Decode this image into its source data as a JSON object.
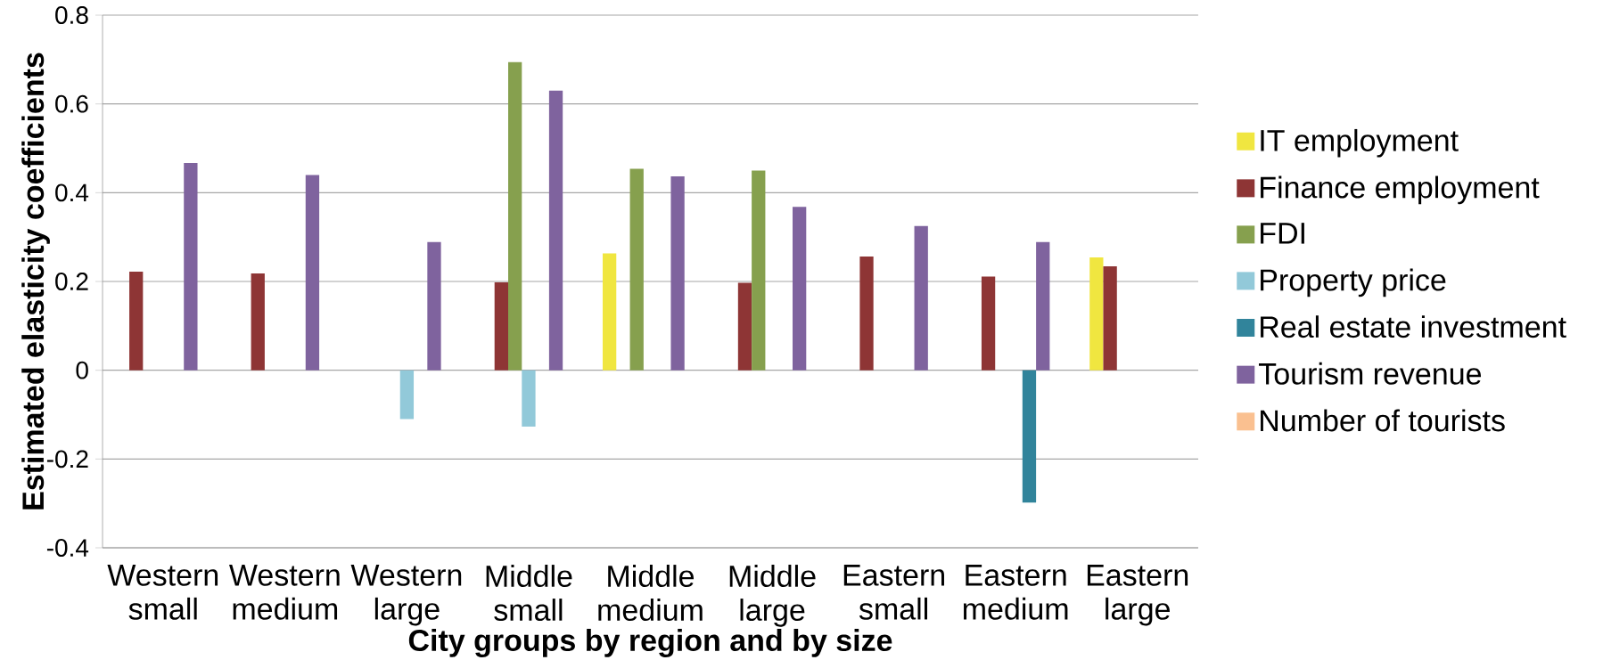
{
  "chart_data": {
    "type": "bar",
    "xlabel": "City groups by region and by size",
    "ylabel": "Estimated elasticity coefficients",
    "categories": [
      "Western small",
      "Western medium",
      "Western large",
      "Middle small",
      "Middle medium",
      "Middle large",
      "Eastern small",
      "Eastern medium",
      "Eastern large"
    ],
    "series": [
      {
        "name": "IT employment",
        "color": "#f0e640",
        "values": [
          null,
          null,
          null,
          null,
          0.263,
          null,
          null,
          null,
          0.254
        ]
      },
      {
        "name": "Finance employment",
        "color": "#8e3535",
        "values": [
          0.222,
          0.218,
          null,
          0.198,
          null,
          0.197,
          0.256,
          0.211,
          0.234
        ]
      },
      {
        "name": "FDI",
        "color": "#86a04e",
        "values": [
          null,
          null,
          null,
          0.694,
          0.454,
          0.45,
          null,
          null,
          null
        ]
      },
      {
        "name": "Property price",
        "color": "#92c9d9",
        "values": [
          null,
          null,
          -0.11,
          -0.127,
          null,
          null,
          null,
          null,
          null
        ]
      },
      {
        "name": "Real estate investment",
        "color": "#31849b",
        "values": [
          null,
          null,
          null,
          null,
          null,
          null,
          null,
          -0.298,
          null
        ]
      },
      {
        "name": "Tourism revenue",
        "color": "#7f639e",
        "values": [
          0.467,
          0.44,
          0.289,
          0.63,
          0.437,
          0.368,
          0.325,
          0.289,
          null
        ]
      },
      {
        "name": "Number of tourists",
        "color": "#fac090",
        "values": [
          null,
          null,
          null,
          null,
          null,
          null,
          null,
          null,
          null
        ]
      }
    ],
    "ylim": [
      -0.4,
      0.8
    ],
    "yticks": [
      -0.4,
      -0.2,
      0,
      0.2,
      0.4,
      0.6,
      0.8
    ],
    "grid": "y",
    "legend": "right"
  }
}
